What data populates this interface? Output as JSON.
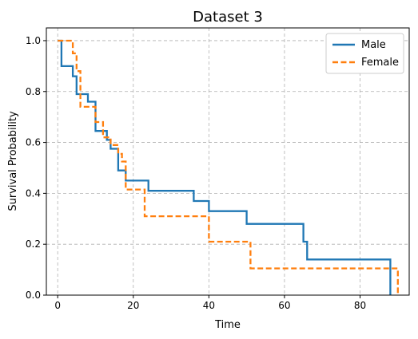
{
  "chart_data": {
    "type": "line",
    "step": "post",
    "title": "Dataset 3",
    "xlabel": "Time",
    "ylabel": "Survival Probability",
    "xlim": [
      -3,
      93
    ],
    "ylim": [
      0,
      1.05
    ],
    "xticks": [
      0,
      20,
      40,
      60,
      80
    ],
    "yticks": [
      0.0,
      0.2,
      0.4,
      0.6,
      0.8,
      1.0
    ],
    "xtick_labels": [
      "0",
      "20",
      "40",
      "60",
      "80"
    ],
    "ytick_labels": [
      "0.0",
      "0.2",
      "0.4",
      "0.6",
      "0.8",
      "1.0"
    ],
    "grid": true,
    "grid_style": "dashed",
    "legend_position": "top-right",
    "series": [
      {
        "name": "Male",
        "color": "#1f77b4",
        "line_style": "solid",
        "x": [
          0,
          1,
          4,
          5,
          8,
          10,
          13,
          14,
          16,
          18,
          24,
          36,
          40,
          50,
          65,
          66,
          88,
          88
        ],
        "y": [
          1.0,
          0.9,
          0.86,
          0.79,
          0.76,
          0.645,
          0.61,
          0.575,
          0.49,
          0.45,
          0.41,
          0.37,
          0.33,
          0.28,
          0.21,
          0.14,
          0.14,
          0.0
        ]
      },
      {
        "name": "Female",
        "color": "#ff7f0e",
        "line_style": "dashed",
        "x": [
          0,
          4,
          5,
          6,
          10,
          12,
          14,
          16,
          17,
          18,
          23,
          40,
          51,
          90
        ],
        "y": [
          1.0,
          0.95,
          0.88,
          0.74,
          0.68,
          0.62,
          0.59,
          0.555,
          0.525,
          0.415,
          0.31,
          0.21,
          0.105,
          0.0
        ]
      }
    ]
  }
}
